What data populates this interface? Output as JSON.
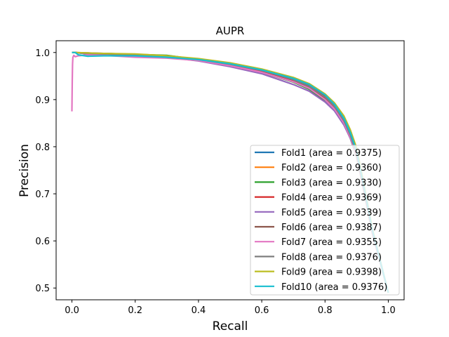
{
  "chart_data": {
    "type": "line",
    "title": "AUPR",
    "xlabel": "Recall",
    "ylabel": "Precision",
    "xlim": [
      -0.05,
      1.05
    ],
    "ylim": [
      0.475,
      1.025
    ],
    "xticks": [
      0.0,
      0.2,
      0.4,
      0.6,
      0.8,
      1.0
    ],
    "xtick_labels": [
      "0.0",
      "0.2",
      "0.4",
      "0.6",
      "0.8",
      "1.0"
    ],
    "yticks": [
      0.5,
      0.6,
      0.7,
      0.8,
      0.9,
      1.0
    ],
    "ytick_labels": [
      "0.5",
      "0.6",
      "0.7",
      "0.8",
      "0.9",
      "1.0"
    ],
    "grid": false,
    "legend_position": "lower-right",
    "series": [
      {
        "name": "Fold1 (area = 0.9375)",
        "color": "#1f77b4",
        "x": [
          0.0,
          0.01,
          0.05,
          0.1,
          0.2,
          0.3,
          0.4,
          0.5,
          0.6,
          0.7,
          0.75,
          0.8,
          0.83,
          0.86,
          0.88,
          0.9,
          0.92,
          0.95,
          1.0
        ],
        "y": [
          1.0,
          1.0,
          0.997,
          0.997,
          0.995,
          0.99,
          0.985,
          0.975,
          0.962,
          0.942,
          0.928,
          0.905,
          0.885,
          0.855,
          0.825,
          0.785,
          0.72,
          0.62,
          0.49
        ]
      },
      {
        "name": "Fold2 (area = 0.9360)",
        "color": "#ff7f0e",
        "x": [
          0.0,
          0.01,
          0.05,
          0.1,
          0.2,
          0.3,
          0.4,
          0.5,
          0.6,
          0.7,
          0.75,
          0.8,
          0.83,
          0.86,
          0.88,
          0.9,
          0.92,
          0.95,
          1.0
        ],
        "y": [
          1.0,
          1.0,
          0.998,
          0.997,
          0.995,
          0.99,
          0.984,
          0.973,
          0.96,
          0.94,
          0.926,
          0.903,
          0.883,
          0.853,
          0.823,
          0.783,
          0.718,
          0.618,
          0.49
        ]
      },
      {
        "name": "Fold3 (area = 0.9330)",
        "color": "#2ca02c",
        "x": [
          0.0,
          0.01,
          0.05,
          0.1,
          0.2,
          0.3,
          0.4,
          0.5,
          0.6,
          0.7,
          0.75,
          0.8,
          0.83,
          0.86,
          0.88,
          0.9,
          0.92,
          0.95,
          1.0
        ],
        "y": [
          1.0,
          1.0,
          0.998,
          0.998,
          0.996,
          0.994,
          0.985,
          0.972,
          0.958,
          0.937,
          0.922,
          0.898,
          0.878,
          0.848,
          0.818,
          0.778,
          0.715,
          0.615,
          0.49
        ]
      },
      {
        "name": "Fold4 (area = 0.9369)",
        "color": "#d62728",
        "x": [
          0.0,
          0.01,
          0.05,
          0.1,
          0.2,
          0.3,
          0.4,
          0.5,
          0.6,
          0.7,
          0.75,
          0.8,
          0.83,
          0.86,
          0.88,
          0.9,
          0.92,
          0.95,
          1.0
        ],
        "y": [
          1.0,
          1.0,
          0.998,
          0.997,
          0.995,
          0.99,
          0.985,
          0.974,
          0.961,
          0.941,
          0.927,
          0.904,
          0.884,
          0.854,
          0.824,
          0.784,
          0.719,
          0.619,
          0.49
        ]
      },
      {
        "name": "Fold5 (area = 0.9339)",
        "color": "#9467bd",
        "x": [
          0.0,
          0.01,
          0.05,
          0.1,
          0.2,
          0.3,
          0.4,
          0.5,
          0.6,
          0.7,
          0.75,
          0.8,
          0.83,
          0.86,
          0.88,
          0.9,
          0.92,
          0.95,
          1.0
        ],
        "y": [
          1.0,
          1.0,
          0.997,
          0.997,
          0.995,
          0.99,
          0.982,
          0.97,
          0.955,
          0.932,
          0.918,
          0.895,
          0.876,
          0.846,
          0.818,
          0.78,
          0.716,
          0.616,
          0.49
        ]
      },
      {
        "name": "Fold6 (area = 0.9387)",
        "color": "#8c564b",
        "x": [
          0.0,
          0.01,
          0.05,
          0.1,
          0.2,
          0.3,
          0.4,
          0.5,
          0.6,
          0.7,
          0.75,
          0.8,
          0.83,
          0.86,
          0.88,
          0.9,
          0.92,
          0.95,
          1.0
        ],
        "y": [
          1.0,
          1.0,
          0.999,
          0.998,
          0.996,
          0.992,
          0.986,
          0.976,
          0.963,
          0.944,
          0.93,
          0.907,
          0.887,
          0.857,
          0.827,
          0.787,
          0.722,
          0.622,
          0.49
        ]
      },
      {
        "name": "Fold7 (area = 0.9355)",
        "color": "#e377c2",
        "x": [
          0.0,
          0.001,
          0.002,
          0.003,
          0.006,
          0.01,
          0.02,
          0.05,
          0.1,
          0.2,
          0.3,
          0.4,
          0.5,
          0.6,
          0.7,
          0.75,
          0.8,
          0.83,
          0.86,
          0.88,
          0.9,
          0.92,
          0.95,
          1.0
        ],
        "y": [
          0.875,
          0.94,
          0.975,
          0.99,
          0.994,
          0.991,
          0.993,
          0.995,
          0.994,
          0.99,
          0.988,
          0.983,
          0.972,
          0.958,
          0.938,
          0.924,
          0.9,
          0.88,
          0.85,
          0.82,
          0.78,
          0.716,
          0.616,
          0.49
        ]
      },
      {
        "name": "Fold8 (area = 0.9376)",
        "color": "#7f7f7f",
        "x": [
          0.0,
          0.01,
          0.05,
          0.1,
          0.2,
          0.3,
          0.4,
          0.5,
          0.6,
          0.7,
          0.75,
          0.8,
          0.83,
          0.86,
          0.88,
          0.9,
          0.92,
          0.95,
          1.0
        ],
        "y": [
          1.0,
          1.0,
          0.998,
          0.997,
          0.995,
          0.99,
          0.985,
          0.975,
          0.962,
          0.942,
          0.928,
          0.905,
          0.885,
          0.855,
          0.825,
          0.785,
          0.72,
          0.62,
          0.49
        ]
      },
      {
        "name": "Fold9 (area = 0.9398)",
        "color": "#bcbd22",
        "x": [
          0.0,
          0.01,
          0.05,
          0.1,
          0.2,
          0.3,
          0.4,
          0.5,
          0.6,
          0.7,
          0.75,
          0.8,
          0.83,
          0.86,
          0.88,
          0.9,
          0.92,
          0.95,
          1.0
        ],
        "y": [
          1.0,
          1.0,
          0.999,
          0.998,
          0.997,
          0.993,
          0.987,
          0.978,
          0.965,
          0.947,
          0.934,
          0.912,
          0.893,
          0.865,
          0.836,
          0.797,
          0.73,
          0.625,
          0.49
        ]
      },
      {
        "name": "Fold10 (area = 0.9376)",
        "color": "#17becf",
        "x": [
          0.0,
          0.01,
          0.02,
          0.05,
          0.1,
          0.2,
          0.3,
          0.4,
          0.5,
          0.6,
          0.7,
          0.75,
          0.8,
          0.83,
          0.86,
          0.88,
          0.9,
          0.92,
          0.95,
          1.0
        ],
        "y": [
          1.0,
          1.0,
          0.995,
          0.992,
          0.993,
          0.993,
          0.99,
          0.985,
          0.976,
          0.963,
          0.945,
          0.932,
          0.91,
          0.89,
          0.86,
          0.83,
          0.79,
          0.725,
          0.622,
          0.49
        ]
      }
    ]
  }
}
